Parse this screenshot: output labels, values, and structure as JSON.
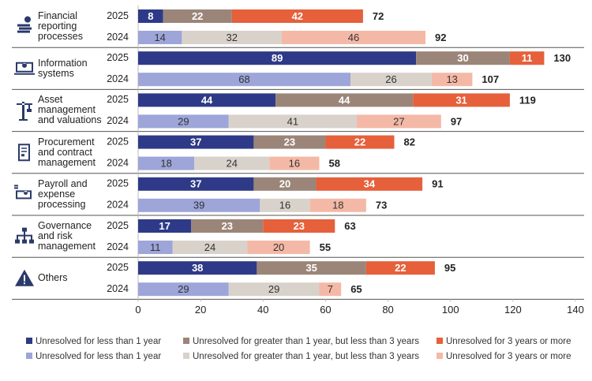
{
  "chart_data": {
    "type": "bar",
    "orientation": "horizontal",
    "stacked": true,
    "groups": [
      "Financial reporting processes",
      "Information systems",
      "Asset management and valuations",
      "Procurement and contract management",
      "Payroll and expense processing",
      "Governance and risk management",
      "Others"
    ],
    "categories": [
      "2025",
      "2024",
      "2025",
      "2024",
      "2025",
      "2024",
      "2025",
      "2024",
      "2025",
      "2024",
      "2025",
      "2024",
      "2025",
      "2024"
    ],
    "series": [
      {
        "name": "Unresolved for less than 1 year",
        "color": "#2e3a87",
        "values": [
          8,
          null,
          89,
          null,
          44,
          null,
          37,
          null,
          37,
          null,
          17,
          null,
          38,
          null
        ]
      },
      {
        "name": "Unresolved for greater than 1 year, but less than 3 years",
        "color": "#9b8579",
        "values": [
          22,
          null,
          30,
          null,
          44,
          null,
          23,
          null,
          20,
          null,
          23,
          null,
          35,
          null
        ]
      },
      {
        "name": "Unresolved for 3 years or more",
        "color": "#e5603b",
        "values": [
          42,
          null,
          11,
          null,
          31,
          null,
          22,
          null,
          34,
          null,
          23,
          null,
          22,
          null
        ]
      },
      {
        "name": "Unresolved for less than 1 year",
        "color": "#9da5d9",
        "values": [
          null,
          14,
          null,
          68,
          null,
          29,
          null,
          18,
          null,
          39,
          null,
          11,
          null,
          29
        ]
      },
      {
        "name": "Unresolved for greater than 1 year, but less than 3 years",
        "color": "#d9d2cb",
        "values": [
          null,
          32,
          null,
          26,
          null,
          41,
          null,
          24,
          null,
          16,
          null,
          24,
          null,
          29
        ]
      },
      {
        "name": "Unresolved for 3 years or more",
        "color": "#f4b9a6",
        "values": [
          null,
          46,
          null,
          13,
          null,
          27,
          null,
          16,
          null,
          18,
          null,
          20,
          null,
          7
        ]
      }
    ],
    "totals": [
      72,
      92,
      130,
      107,
      119,
      97,
      82,
      58,
      91,
      73,
      63,
      55,
      95,
      65
    ],
    "xlim": [
      0,
      140
    ],
    "xticks": [
      0,
      20,
      40,
      60,
      80,
      100,
      120,
      140
    ],
    "grid": false
  }
}
